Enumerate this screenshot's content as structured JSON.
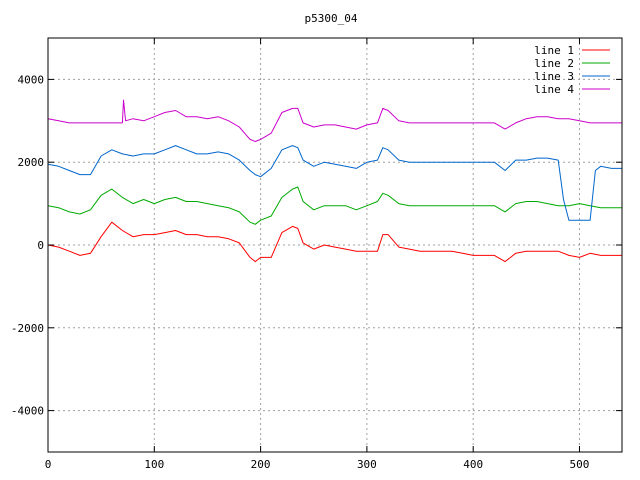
{
  "chart_data": {
    "type": "line",
    "title": "p5300_04",
    "xlabel": "",
    "ylabel": "",
    "xlim": [
      0,
      540
    ],
    "ylim": [
      -5000,
      5000
    ],
    "x_ticks": [
      0,
      100,
      200,
      300,
      400,
      500
    ],
    "y_ticks": [
      -4000,
      -2000,
      0,
      2000,
      4000
    ],
    "grid": true,
    "legend_position": "top-right",
    "series": [
      {
        "name": "line 1",
        "color": "#ff0000",
        "points": [
          [
            0,
            0
          ],
          [
            10,
            -50
          ],
          [
            20,
            -150
          ],
          [
            30,
            -250
          ],
          [
            40,
            -200
          ],
          [
            50,
            200
          ],
          [
            60,
            550
          ],
          [
            70,
            350
          ],
          [
            80,
            200
          ],
          [
            90,
            250
          ],
          [
            100,
            250
          ],
          [
            110,
            300
          ],
          [
            120,
            350
          ],
          [
            130,
            250
          ],
          [
            140,
            250
          ],
          [
            150,
            200
          ],
          [
            160,
            200
          ],
          [
            170,
            150
          ],
          [
            180,
            50
          ],
          [
            190,
            -300
          ],
          [
            195,
            -400
          ],
          [
            200,
            -300
          ],
          [
            210,
            -300
          ],
          [
            220,
            300
          ],
          [
            230,
            450
          ],
          [
            235,
            400
          ],
          [
            240,
            50
          ],
          [
            250,
            -100
          ],
          [
            260,
            0
          ],
          [
            270,
            -50
          ],
          [
            280,
            -100
          ],
          [
            290,
            -150
          ],
          [
            300,
            -150
          ],
          [
            310,
            -150
          ],
          [
            315,
            250
          ],
          [
            320,
            250
          ],
          [
            330,
            -50
          ],
          [
            340,
            -100
          ],
          [
            350,
            -150
          ],
          [
            360,
            -150
          ],
          [
            370,
            -150
          ],
          [
            380,
            -150
          ],
          [
            390,
            -200
          ],
          [
            400,
            -250
          ],
          [
            410,
            -250
          ],
          [
            420,
            -250
          ],
          [
            430,
            -400
          ],
          [
            440,
            -200
          ],
          [
            450,
            -150
          ],
          [
            460,
            -150
          ],
          [
            470,
            -150
          ],
          [
            480,
            -150
          ],
          [
            490,
            -250
          ],
          [
            500,
            -300
          ],
          [
            510,
            -200
          ],
          [
            520,
            -250
          ],
          [
            530,
            -250
          ],
          [
            540,
            -250
          ]
        ]
      },
      {
        "name": "line 2",
        "color": "#00aa00",
        "points": [
          [
            0,
            950
          ],
          [
            10,
            900
          ],
          [
            20,
            800
          ],
          [
            30,
            750
          ],
          [
            40,
            850
          ],
          [
            50,
            1200
          ],
          [
            60,
            1350
          ],
          [
            70,
            1150
          ],
          [
            80,
            1000
          ],
          [
            90,
            1100
          ],
          [
            100,
            1000
          ],
          [
            110,
            1100
          ],
          [
            120,
            1150
          ],
          [
            130,
            1050
          ],
          [
            140,
            1050
          ],
          [
            150,
            1000
          ],
          [
            160,
            950
          ],
          [
            170,
            900
          ],
          [
            180,
            800
          ],
          [
            190,
            550
          ],
          [
            195,
            500
          ],
          [
            200,
            600
          ],
          [
            210,
            700
          ],
          [
            220,
            1150
          ],
          [
            230,
            1350
          ],
          [
            235,
            1400
          ],
          [
            240,
            1050
          ],
          [
            250,
            850
          ],
          [
            260,
            950
          ],
          [
            270,
            950
          ],
          [
            280,
            950
          ],
          [
            290,
            850
          ],
          [
            300,
            950
          ],
          [
            310,
            1050
          ],
          [
            315,
            1250
          ],
          [
            320,
            1200
          ],
          [
            330,
            1000
          ],
          [
            340,
            950
          ],
          [
            350,
            950
          ],
          [
            360,
            950
          ],
          [
            370,
            950
          ],
          [
            380,
            950
          ],
          [
            390,
            950
          ],
          [
            400,
            950
          ],
          [
            410,
            950
          ],
          [
            420,
            950
          ],
          [
            430,
            800
          ],
          [
            440,
            1000
          ],
          [
            450,
            1050
          ],
          [
            460,
            1050
          ],
          [
            470,
            1000
          ],
          [
            480,
            950
          ],
          [
            490,
            950
          ],
          [
            500,
            1000
          ],
          [
            510,
            950
          ],
          [
            520,
            900
          ],
          [
            530,
            900
          ],
          [
            540,
            900
          ]
        ]
      },
      {
        "name": "line 3",
        "color": "#0066cc",
        "points": [
          [
            0,
            1950
          ],
          [
            10,
            1900
          ],
          [
            20,
            1800
          ],
          [
            30,
            1700
          ],
          [
            40,
            1700
          ],
          [
            50,
            2150
          ],
          [
            60,
            2300
          ],
          [
            70,
            2200
          ],
          [
            80,
            2150
          ],
          [
            90,
            2200
          ],
          [
            100,
            2200
          ],
          [
            110,
            2300
          ],
          [
            120,
            2400
          ],
          [
            130,
            2300
          ],
          [
            140,
            2200
          ],
          [
            150,
            2200
          ],
          [
            160,
            2250
          ],
          [
            170,
            2200
          ],
          [
            180,
            2050
          ],
          [
            190,
            1800
          ],
          [
            195,
            1700
          ],
          [
            200,
            1650
          ],
          [
            210,
            1850
          ],
          [
            220,
            2300
          ],
          [
            230,
            2400
          ],
          [
            235,
            2350
          ],
          [
            240,
            2050
          ],
          [
            250,
            1900
          ],
          [
            260,
            2000
          ],
          [
            270,
            1950
          ],
          [
            280,
            1900
          ],
          [
            290,
            1850
          ],
          [
            300,
            2000
          ],
          [
            310,
            2050
          ],
          [
            315,
            2350
          ],
          [
            320,
            2300
          ],
          [
            330,
            2050
          ],
          [
            340,
            2000
          ],
          [
            350,
            2000
          ],
          [
            360,
            2000
          ],
          [
            370,
            2000
          ],
          [
            380,
            2000
          ],
          [
            390,
            2000
          ],
          [
            400,
            2000
          ],
          [
            410,
            2000
          ],
          [
            420,
            2000
          ],
          [
            430,
            1800
          ],
          [
            440,
            2050
          ],
          [
            450,
            2050
          ],
          [
            460,
            2100
          ],
          [
            470,
            2100
          ],
          [
            480,
            2050
          ],
          [
            485,
            1100
          ],
          [
            490,
            600
          ],
          [
            500,
            600
          ],
          [
            510,
            600
          ],
          [
            515,
            1800
          ],
          [
            520,
            1900
          ],
          [
            530,
            1850
          ],
          [
            540,
            1850
          ]
        ]
      },
      {
        "name": "line 4",
        "color": "#cc00cc",
        "points": [
          [
            0,
            3050
          ],
          [
            10,
            3000
          ],
          [
            20,
            2950
          ],
          [
            30,
            2950
          ],
          [
            40,
            2950
          ],
          [
            50,
            2950
          ],
          [
            60,
            2950
          ],
          [
            70,
            2950
          ],
          [
            71,
            3500
          ],
          [
            73,
            3000
          ],
          [
            80,
            3050
          ],
          [
            90,
            3000
          ],
          [
            100,
            3100
          ],
          [
            110,
            3200
          ],
          [
            120,
            3250
          ],
          [
            130,
            3100
          ],
          [
            140,
            3100
          ],
          [
            150,
            3050
          ],
          [
            160,
            3100
          ],
          [
            170,
            3000
          ],
          [
            180,
            2850
          ],
          [
            190,
            2550
          ],
          [
            195,
            2500
          ],
          [
            200,
            2550
          ],
          [
            210,
            2700
          ],
          [
            220,
            3200
          ],
          [
            230,
            3300
          ],
          [
            235,
            3300
          ],
          [
            240,
            2950
          ],
          [
            250,
            2850
          ],
          [
            260,
            2900
          ],
          [
            270,
            2900
          ],
          [
            280,
            2850
          ],
          [
            290,
            2800
          ],
          [
            300,
            2900
          ],
          [
            310,
            2950
          ],
          [
            315,
            3300
          ],
          [
            320,
            3250
          ],
          [
            330,
            3000
          ],
          [
            340,
            2950
          ],
          [
            350,
            2950
          ],
          [
            360,
            2950
          ],
          [
            370,
            2950
          ],
          [
            380,
            2950
          ],
          [
            390,
            2950
          ],
          [
            400,
            2950
          ],
          [
            410,
            2950
          ],
          [
            420,
            2950
          ],
          [
            430,
            2800
          ],
          [
            440,
            2950
          ],
          [
            450,
            3050
          ],
          [
            460,
            3100
          ],
          [
            470,
            3100
          ],
          [
            480,
            3050
          ],
          [
            490,
            3050
          ],
          [
            500,
            3000
          ],
          [
            510,
            2950
          ],
          [
            520,
            2950
          ],
          [
            530,
            2950
          ],
          [
            540,
            2950
          ]
        ]
      }
    ]
  }
}
